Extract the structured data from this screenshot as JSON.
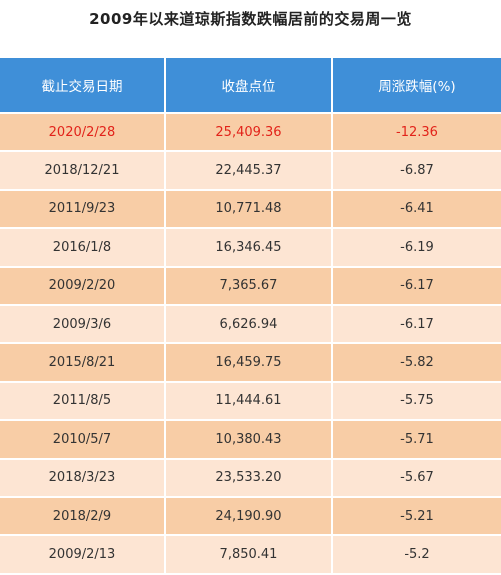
{
  "header": {
    "title": "2009年以来道琼斯指数跌幅居前的交易周一览"
  },
  "table": {
    "columns": [
      "截止交易日期",
      "收盘点位",
      "周涨跌幅(%)"
    ],
    "rows": [
      [
        "2020/2/28",
        "25,409.36",
        "-12.36"
      ],
      [
        "2018/12/21",
        "22,445.37",
        "-6.87"
      ],
      [
        "2011/9/23",
        "10,771.48",
        "-6.41"
      ],
      [
        "2016/1/8",
        "16,346.45",
        "-6.19"
      ],
      [
        "2009/2/20",
        "7,365.67",
        "-6.17"
      ],
      [
        "2009/3/6",
        "6,626.94",
        "-6.17"
      ],
      [
        "2015/8/21",
        "16,459.75",
        "-5.82"
      ],
      [
        "2011/8/5",
        "11,444.61",
        "-5.75"
      ],
      [
        "2010/5/7",
        "10,380.43",
        "-5.71"
      ],
      [
        "2018/3/23",
        "23,533.20",
        "-5.67"
      ],
      [
        "2018/2/9",
        "24,190.90",
        "-5.21"
      ],
      [
        "2009/2/13",
        "7,850.41",
        "-5.2"
      ]
    ],
    "highlight_row": 0
  }
}
